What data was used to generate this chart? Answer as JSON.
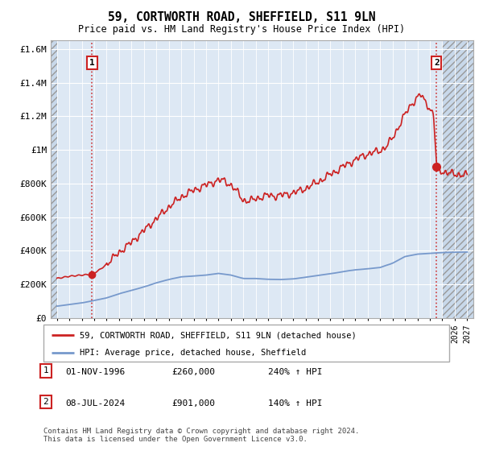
{
  "title": "59, CORTWORTH ROAD, SHEFFIELD, S11 9LN",
  "subtitle": "Price paid vs. HM Land Registry's House Price Index (HPI)",
  "sale1_x": 1996.833,
  "sale1_y": 260000,
  "sale2_x": 2024.542,
  "sale2_y": 901000,
  "legend_line1": "59, CORTWORTH ROAD, SHEFFIELD, S11 9LN (detached house)",
  "legend_line2": "HPI: Average price, detached house, Sheffield",
  "note1_label": "1",
  "note1_date": "01-NOV-1996",
  "note1_price": "£260,000",
  "note1_pct": "240% ↑ HPI",
  "note2_label": "2",
  "note2_date": "08-JUL-2024",
  "note2_price": "£901,000",
  "note2_pct": "140% ↑ HPI",
  "footer": "Contains HM Land Registry data © Crown copyright and database right 2024.\nThis data is licensed under the Open Government Licence v3.0.",
  "line_color_red": "#cc2222",
  "line_color_blue": "#7799cc",
  "bg_color": "#dde8f4",
  "grid_color": "#ffffff",
  "ylim": [
    0,
    1650000
  ],
  "xlim_start": 1993.5,
  "xlim_end": 2027.5
}
